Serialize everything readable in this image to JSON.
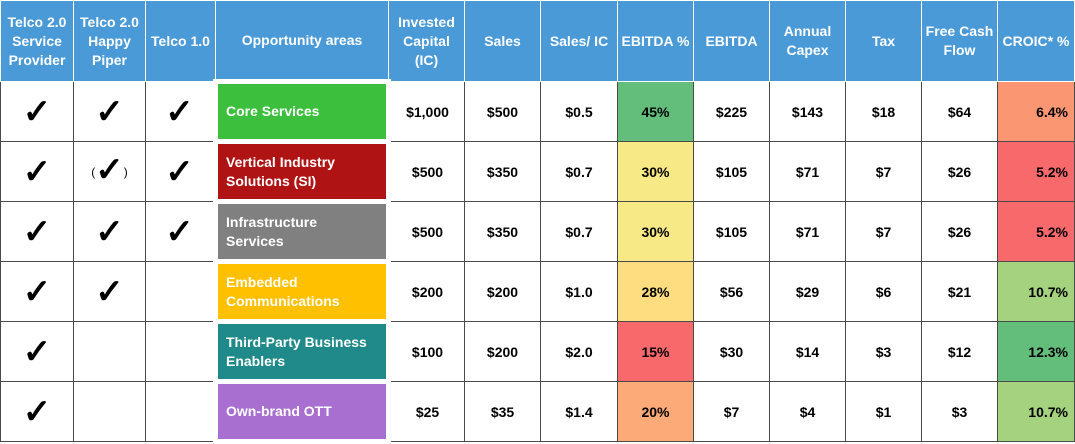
{
  "headers": [
    "Telco 2.0 Service Provider",
    "Telco 2.0 Happy Piper",
    "Telco 1.0",
    "Opportunity areas",
    "Invested Capital (IC)",
    "Sales",
    "Sales/ IC",
    "EBITDA %",
    "EBITDA",
    "Annual Capex",
    "Tax",
    "Free Cash Flow",
    "CROIC* %"
  ],
  "rows": [
    {
      "sp": "✓",
      "hp": "✓",
      "hp_paren": false,
      "t1": "✓",
      "area": "Core Services",
      "area_color": "#3cbf3c",
      "ic": "$1,000",
      "sales": "$500",
      "sic": "$0.5",
      "ebitda_pct": "45%",
      "ebitda_pct_color": "#63be7b",
      "ebitda": "$225",
      "capex": "$143",
      "tax": "$18",
      "fcf": "$64",
      "croic": "6.4%",
      "croic_color": "#fb9673"
    },
    {
      "sp": "✓",
      "hp": "✓",
      "hp_paren": true,
      "t1": "✓",
      "area": "Vertical Industry Solutions (SI)",
      "area_color": "#b01313",
      "ic": "$500",
      "sales": "$350",
      "sic": "$0.7",
      "ebitda_pct": "30%",
      "ebitda_pct_color": "#f7e985",
      "ebitda": "$105",
      "capex": "$71",
      "tax": "$7",
      "fcf": "$26",
      "croic": "5.2%",
      "croic_color": "#f8696b"
    },
    {
      "sp": "✓",
      "hp": "✓",
      "hp_paren": false,
      "t1": "✓",
      "area": "Infrastructure Services",
      "area_color": "#808080",
      "ic": "$500",
      "sales": "$350",
      "sic": "$0.7",
      "ebitda_pct": "30%",
      "ebitda_pct_color": "#f7e985",
      "ebitda": "$105",
      "capex": "$71",
      "tax": "$7",
      "fcf": "$26",
      "croic": "5.2%",
      "croic_color": "#f8696b"
    },
    {
      "sp": "✓",
      "hp": "✓",
      "hp_paren": false,
      "t1": "",
      "area": "Embedded Communications",
      "area_color": "#ffc000",
      "ic": "$200",
      "sales": "$200",
      "sic": "$1.0",
      "ebitda_pct": "28%",
      "ebitda_pct_color": "#fedd81",
      "ebitda": "$56",
      "capex": "$29",
      "tax": "$6",
      "fcf": "$21",
      "croic": "10.7%",
      "croic_color": "#a5d27f"
    },
    {
      "sp": "✓",
      "hp": "",
      "hp_paren": false,
      "t1": "",
      "area": "Third-Party Business Enablers",
      "area_color": "#208a8a",
      "ic": "$100",
      "sales": "$200",
      "sic": "$2.0",
      "ebitda_pct": "15%",
      "ebitda_pct_color": "#f8696b",
      "ebitda": "$30",
      "capex": "$14",
      "tax": "$3",
      "fcf": "$12",
      "croic": "12.3%",
      "croic_color": "#63be7b"
    },
    {
      "sp": "✓",
      "hp": "",
      "hp_paren": false,
      "t1": "",
      "area": "Own-brand OTT",
      "area_color": "#a86ed0",
      "ic": "$25",
      "sales": "$35",
      "sic": "$1.4",
      "ebitda_pct": "20%",
      "ebitda_pct_color": "#fcaa78",
      "ebitda": "$7",
      "capex": "$4",
      "tax": "$1",
      "fcf": "$3",
      "croic": "10.7%",
      "croic_color": "#a5d27f"
    }
  ]
}
